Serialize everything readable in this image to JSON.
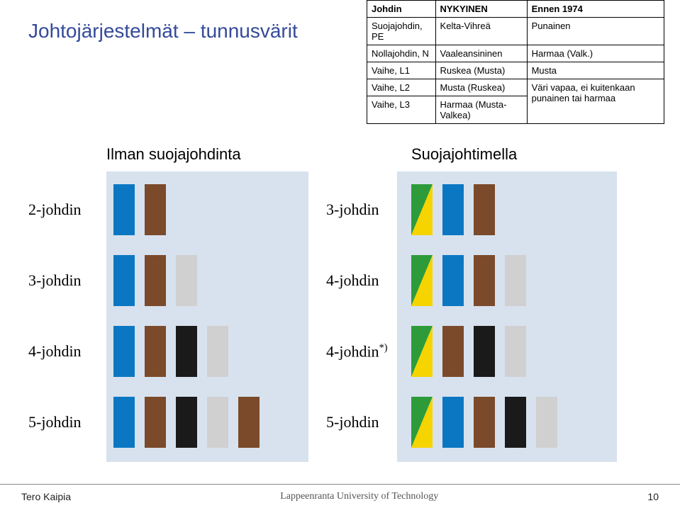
{
  "title": "Johtojärjestelmät – tunnusvärit",
  "table": {
    "headers": [
      "Johdin",
      "NYKYINEN",
      "Ennen 1974"
    ],
    "rows": [
      [
        "Suojajohdin, PE",
        "Kelta-Vihreä",
        "Punainen"
      ],
      [
        "Nollajohdin, N",
        "Vaaleansininen",
        "Harmaa (Valk.)"
      ],
      [
        "Vaihe, L1",
        "Ruskea (Musta)",
        "Musta"
      ],
      [
        "Vaihe, L2",
        "Musta (Ruskea)",
        "Väri vapaa, ei kuitenkaan punainen tai harmaa"
      ],
      [
        "Vaihe, L3",
        "Harmaa (Musta-Valkea)",
        ""
      ]
    ]
  },
  "column_labels": {
    "left": "Ilman suojajohdinta",
    "right": "Suojajohtimella"
  },
  "colors": {
    "bg_panel": "#d7e2ee",
    "blue": "#0b77c2",
    "brown": "#7b4a2a",
    "grey": "#d0d0d0",
    "black": "#1a1a1a",
    "green": "#2e9b3a",
    "yellow": "#f6d400"
  },
  "left_rows": [
    {
      "label": "2-johdin",
      "wires": [
        {
          "c": "#0b77c2"
        },
        {
          "c": "#7b4a2a"
        }
      ]
    },
    {
      "label": "3-johdin",
      "wires": [
        {
          "c": "#0b77c2"
        },
        {
          "c": "#7b4a2a"
        },
        {
          "c": "#d0d0d0"
        }
      ]
    },
    {
      "label": "4-johdin",
      "wires": [
        {
          "c": "#0b77c2"
        },
        {
          "c": "#7b4a2a"
        },
        {
          "c": "#1a1a1a"
        },
        {
          "c": "#d0d0d0"
        }
      ]
    },
    {
      "label": "5-johdin",
      "wires": [
        {
          "c": "#0b77c2"
        },
        {
          "c": "#7b4a2a"
        },
        {
          "c": "#1a1a1a"
        },
        {
          "c": "#d0d0d0"
        },
        {
          "c": "#7b4a2a"
        }
      ]
    }
  ],
  "right_rows": [
    {
      "label": "3-johdin",
      "wires": [
        {
          "stripe": [
            "#2e9b3a",
            "#f6d400"
          ]
        },
        {
          "c": "#0b77c2"
        },
        {
          "c": "#7b4a2a"
        }
      ]
    },
    {
      "label": "4-johdin",
      "wires": [
        {
          "stripe": [
            "#2e9b3a",
            "#f6d400"
          ]
        },
        {
          "c": "#0b77c2"
        },
        {
          "c": "#7b4a2a"
        },
        {
          "c": "#d0d0d0"
        }
      ]
    },
    {
      "label": "4-johdin",
      "sup": "*)",
      "wires": [
        {
          "stripe": [
            "#2e9b3a",
            "#f6d400"
          ]
        },
        {
          "c": "#7b4a2a"
        },
        {
          "c": "#1a1a1a"
        },
        {
          "c": "#d0d0d0"
        }
      ]
    },
    {
      "label": "5-johdin",
      "wires": [
        {
          "stripe": [
            "#2e9b3a",
            "#f6d400"
          ]
        },
        {
          "c": "#0b77c2"
        },
        {
          "c": "#7b4a2a"
        },
        {
          "c": "#1a1a1a"
        },
        {
          "c": "#d0d0d0"
        }
      ]
    }
  ],
  "row_top_offsets": [
    18,
    118,
    218,
    318
  ],
  "footer": {
    "author": "Tero Kaipia",
    "university": "Lappeenranta University of Technology",
    "page": "10"
  }
}
